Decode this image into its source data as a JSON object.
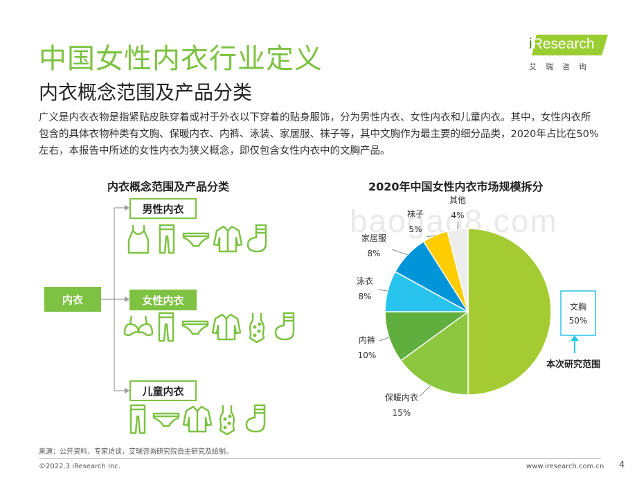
{
  "header": {
    "title": "中国女性内衣行业定义",
    "subtitle": "内衣概念范围及产品分类",
    "logo_text": "Research",
    "logo_i": "i",
    "logo_cn": "艾瑞咨询"
  },
  "intro": "广义是内衣衣物是指紧贴皮肤穿着或衬于外衣以下穿着的贴身服饰，分为男性内衣、女性内衣和儿童内衣。其中，女性内衣所包含的具体衣物种类有文胸、保暖内衣、内裤、泳装、家居服、袜子等，其中文胸作为最主要的细分品类，2020年占比在50%左右，本报告中所述的女性内衣为狭义概念，即仅包含女性内衣中的文胸产品。",
  "diagram": {
    "title": "内衣概念范围及产品分类",
    "root": "内衣",
    "branches": [
      {
        "label": "男性内衣",
        "icons": [
          "tank-top-icon",
          "long-johns-icon",
          "briefs-icon",
          "shirt-icon",
          "sock-icon"
        ]
      },
      {
        "label": "女性内衣",
        "icons": [
          "bra-icon",
          "leggings-icon",
          "panties-icon",
          "pajama-shirt-icon",
          "swimsuit-icon",
          "sock-icon"
        ]
      },
      {
        "label": "儿童内衣",
        "icons": [
          "leggings-icon",
          "panties-icon",
          "pajama-shirt-icon",
          "swimsuit-icon",
          "sock-icon"
        ]
      }
    ]
  },
  "chart_data": {
    "type": "pie",
    "title": "2020年中国女性内衣市场规模拆分",
    "categories": [
      "文胸",
      "保暖内衣",
      "内裤",
      "泳衣",
      "家居服",
      "袜子",
      "其他"
    ],
    "values": [
      50,
      15,
      10,
      8,
      8,
      5,
      4
    ],
    "labels": [
      "50%",
      "15%",
      "10%",
      "8%",
      "8%",
      "5%",
      "4%"
    ],
    "colors": [
      "#A4CC32",
      "#8DC63F",
      "#5FAE3E",
      "#29C4EE",
      "#0095D9",
      "#FFCC00",
      "#EDEDED"
    ],
    "annotation": "本次研究范围"
  },
  "watermark": "baogao8.com",
  "footer": {
    "source": "来源：公开资料，专家访谈，艾瑞咨询研究院自主研究及绘制。",
    "copyright": "©2022.3 iResearch Inc.",
    "website": "www.iresearch.com.cn",
    "page": "4"
  }
}
